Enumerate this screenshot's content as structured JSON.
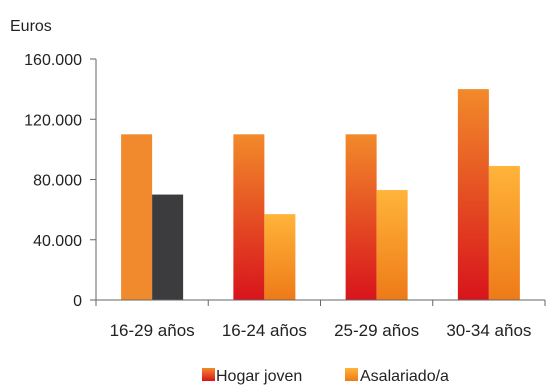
{
  "chart_data": {
    "type": "bar",
    "ylabel": "Euros",
    "ylim": [
      0,
      160000
    ],
    "y_ticks": [
      "0",
      "40.000",
      "80.000",
      "120.000",
      "160.000"
    ],
    "categories": [
      "16-29 años",
      "16-24 años",
      "25-29 años",
      "30-34 años"
    ],
    "series": [
      {
        "name": "Hogar joven",
        "values": [
          110000,
          110000,
          110000,
          140000
        ]
      },
      {
        "name": "Asalariado/a",
        "values": [
          70000,
          57000,
          73000,
          89000
        ]
      }
    ],
    "legend_position": "bottom",
    "grid": false,
    "colors": {
      "hogar_top": "#f28a2a",
      "hogar_bottom": "#d8141c",
      "asalariado_top": "#ffb43a",
      "asalariado_bottom": "#ee7a18",
      "first_group_hogar": "#f08a2c",
      "first_group_asalariado": "#3c3c3e",
      "axis": "#666666"
    }
  }
}
